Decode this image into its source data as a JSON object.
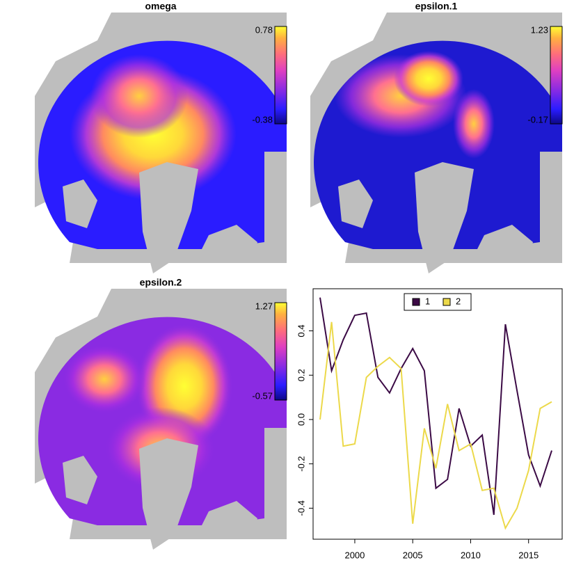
{
  "chart_data": [
    {
      "type": "map",
      "title": "omega",
      "clim": [
        -0.38,
        0.78
      ]
    },
    {
      "type": "map",
      "title": "epsilon.1",
      "clim": [
        -0.17,
        1.23
      ]
    },
    {
      "type": "map",
      "title": "epsilon.2",
      "clim": [
        -0.57,
        1.27
      ]
    },
    {
      "type": "line",
      "x": [
        1997,
        1998,
        1999,
        2000,
        2001,
        2002,
        2003,
        2004,
        2005,
        2006,
        2007,
        2008,
        2009,
        2010,
        2011,
        2012,
        2013,
        2014,
        2015,
        2016,
        2017
      ],
      "series": [
        {
          "name": "1",
          "color": "#3b0a45",
          "values": [
            0.55,
            0.22,
            0.36,
            0.47,
            0.48,
            0.19,
            0.12,
            0.23,
            0.32,
            0.22,
            -0.31,
            -0.27,
            0.05,
            -0.12,
            -0.07,
            -0.43,
            0.43,
            0.13,
            -0.16,
            -0.3,
            -0.14
          ]
        },
        {
          "name": "2",
          "color": "#ecd94a",
          "values": [
            0.0,
            0.44,
            -0.12,
            -0.11,
            0.19,
            0.24,
            0.28,
            0.23,
            -0.47,
            -0.04,
            -0.22,
            0.07,
            -0.14,
            -0.11,
            -0.32,
            -0.31,
            -0.49,
            -0.4,
            -0.23,
            0.05,
            0.08
          ]
        }
      ],
      "xlim": [
        1996.4,
        2017.9
      ],
      "ylim": [
        -0.54,
        0.59
      ],
      "xticks": [
        2000,
        2005,
        2010,
        2015
      ],
      "yticks": [
        -0.4,
        -0.2,
        {
          "value": 0,
          "label": "0.0"
        },
        0.2,
        0.4
      ],
      "legend": "top"
    }
  ]
}
